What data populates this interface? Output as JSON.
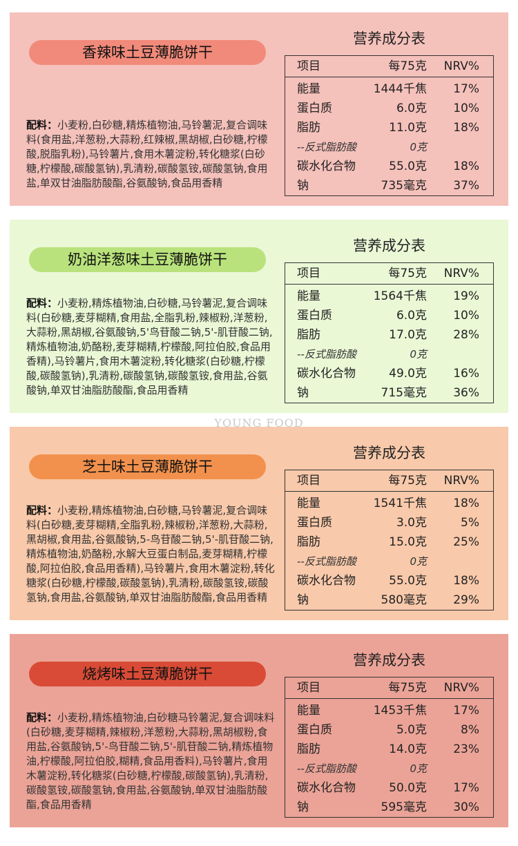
{
  "watermark": "YOUNG FOOD",
  "products": [
    {
      "name": "香辣味土豆薄脆饼干",
      "ingredients_label": "配料：",
      "ingredients": "小麦粉,白砂糖,精炼植物油,马铃薯泥,复合调味料(食用盐,洋葱粉,大蒜粉,红辣椒,黑胡椒,白砂糖,柠檬酸,脱脂乳粉),马铃薯片,食用木薯淀粉,转化糖浆(白砂糖,柠檬酸,碳酸氢钠),乳清粉,碳酸氢铵,碳酸氢钠,食用盐,单双甘油脂肪酸酯,谷氨酸钠,食品用香精",
      "nutrition": {
        "title": "营养成分表",
        "header": [
          "项目",
          "每75克",
          "NRV%"
        ],
        "rows": [
          [
            "能量",
            "1444千焦",
            "17%"
          ],
          [
            "蛋白质",
            "6.0克",
            "10%"
          ],
          [
            "脂肪",
            "11.0克",
            "18%"
          ],
          [
            "--反式脂肪酸",
            "0克"
          ],
          [
            "碳水化合物",
            "55.0克",
            "18%"
          ],
          [
            "钠",
            "735毫克",
            "37%"
          ]
        ]
      }
    },
    {
      "name": "奶油洋葱味土豆薄脆饼干",
      "ingredients_label": "配料：",
      "ingredients": "小麦粉,精炼植物油,白砂糖,马铃薯泥,复合调味料(白砂糖,麦芽糊精,食用盐,全脂乳粉,辣椒粉,洋葱粉,大蒜粉,黑胡椒,谷氨酸钠,5'鸟苷酸二钠,5'-肌苷酸二钠,精炼植物油,奶酪粉,麦芽糊精,柠檬酸,阿拉伯胶,食品用香精),马铃薯片,食用木薯淀粉,转化糖浆(白砂糖,柠檬酸,碳酸氢钠),乳清粉,碳酸氢钠,碳酸氢铵,食用盐,谷氨酸钠,单双甘油脂肪酸酯,食品用香精",
      "nutrition": {
        "title": "营养成分表",
        "header": [
          "项目",
          "每75克",
          "NRV%"
        ],
        "rows": [
          [
            "能量",
            "1564千焦",
            "19%"
          ],
          [
            "蛋白质",
            "6.0克",
            "10%"
          ],
          [
            "脂肪",
            "17.0克",
            "28%"
          ],
          [
            "--反式脂肪酸",
            "0克"
          ],
          [
            "碳水化合物",
            "49.0克",
            "16%"
          ],
          [
            "钠",
            "715毫克",
            "36%"
          ]
        ]
      }
    },
    {
      "name": "芝士味土豆薄脆饼干",
      "ingredients_label": "配料：",
      "ingredients": "小麦粉,精炼植物油,白砂糖,马铃薯泥,复合调味料(白砂糖,麦芽糊精,全脂乳粉,辣椒粉,洋葱粉,大蒜粉,黑胡椒,食用盐,谷氨酸钠,5-鸟苷酸二钠,5'-肌苷酸二钠,精炼植物油,奶酪粉,水解大豆蛋白制品,麦芽糊精,柠檬酸,阿拉伯胶,食品用香精),马铃薯片,食用木薯淀粉,转化糖浆(白砂糖,柠檬酸,碳酸氢钠),乳清粉,碳酸氢铵,碳酸氢钠,食用盐,谷氨酸钠,单双甘油脂肪酸酯,食品用香精",
      "nutrition": {
        "title": "营养成分表",
        "header": [
          "项目",
          "每75克",
          "NRV%"
        ],
        "rows": [
          [
            "能量",
            "1541千焦",
            "18%"
          ],
          [
            "蛋白质",
            "3.0克",
            "5%"
          ],
          [
            "脂肪",
            "15.0克",
            "25%"
          ],
          [
            "--反式脂肪酸",
            "0克"
          ],
          [
            "碳水化合物",
            "55.0克",
            "18%"
          ],
          [
            "钠",
            "580毫克",
            "29%"
          ]
        ]
      }
    },
    {
      "name": "烧烤味土豆薄脆饼干",
      "ingredients_label": "配料：",
      "ingredients": "小麦粉,精炼植物油,白砂糖马铃薯泥,复合调味料(白砂糖,麦芽糊精,辣椒粉,洋葱粉,大蒜粉,黑胡椒粉,食用盐,谷氨酸钠,5'-鸟苷酸二钠,5'-肌苷酸二钠,精炼植物油,柠檬酸,阿拉伯胶,糊精,食品用香料),马铃薯片,食用木薯淀粉,转化糖浆(白砂糖,柠檬酸,碳酸氢钠),乳清粉,碳酸氢铵,碳酸氢钠,食用盐,谷氨酸钠,单双甘油脂肪酸酯,食品用香精",
      "nutrition": {
        "title": "营养成分表",
        "header": [
          "项目",
          "每75克",
          "NRV%"
        ],
        "rows": [
          [
            "能量",
            "1453千焦",
            "17%"
          ],
          [
            "蛋白质",
            "5.0克",
            "8%"
          ],
          [
            "脂肪",
            "14.0克",
            "23%"
          ],
          [
            "--反式脂肪酸",
            "0克"
          ],
          [
            "碳水化合物",
            "50.0克",
            "17%"
          ],
          [
            "钠",
            "595毫克",
            "30%"
          ]
        ]
      }
    }
  ]
}
